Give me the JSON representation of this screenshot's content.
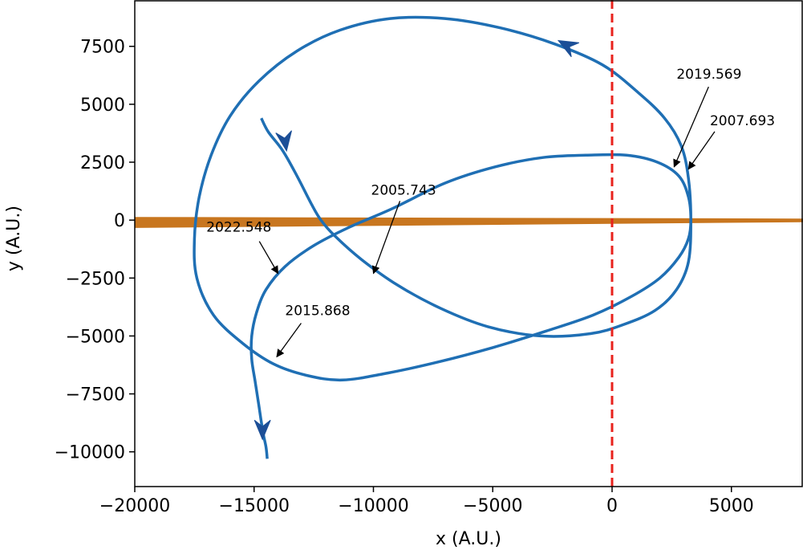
{
  "chart_data": {
    "type": "line",
    "title": "",
    "xlabel": "x (A.U.)",
    "ylabel": "y (A.U.)",
    "xlim": [
      -20000,
      8000
    ],
    "ylim": [
      -11500,
      9500
    ],
    "grid": false,
    "xticks": [
      -20000,
      -15000,
      -10000,
      -5000,
      0,
      5000
    ],
    "xtick_labels": [
      "−20000",
      "−15000",
      "−10000",
      "−5000",
      "0",
      "5000"
    ],
    "yticks": [
      -10000,
      -7500,
      -5000,
      -2500,
      0,
      2500,
      5000,
      7500
    ],
    "ytick_labels": [
      "−10000",
      "−7500",
      "−5000",
      "−2500",
      "0",
      "2500",
      "5000",
      "7500"
    ],
    "reference_line": {
      "x": 0,
      "style": "dashed",
      "color": "#e8221c"
    },
    "band": {
      "x": [
        -20000,
        8000
      ],
      "y_top": [
        120,
        50
      ],
      "y_bottom": [
        -320,
        -70
      ],
      "color": "#c8761f"
    },
    "orbit_color": "#1f6fb4",
    "arrow_color": "#1c4f97",
    "orbit": {
      "x": [
        -14450,
        -14500,
        -14600,
        -14700,
        -14800,
        -14950,
        -15100,
        -15100,
        -14900,
        -14500,
        -13700,
        -12500,
        -11000,
        -9200,
        -7000,
        -4900,
        -2900,
        -1100,
        600,
        1900,
        2800,
        3200,
        3300,
        3200,
        2800,
        2000,
        800,
        -800,
        -2800,
        -5000,
        -7200,
        -9400,
        -11300,
        -12800,
        -14200,
        -15500,
        -16700,
        -17400,
        -17500,
        -17300,
        -16800,
        -16000,
        -14800,
        -13200,
        -11400,
        -9300,
        -7000,
        -4700,
        -2400,
        -400,
        1100,
        2200,
        2900,
        3200,
        3300,
        3200,
        2700,
        1800,
        500,
        -900,
        -3000,
        -5200,
        -7200,
        -9000,
        -10500,
        -11600,
        -12200,
        -12600,
        -13200,
        -13800,
        -14400,
        -14700
      ],
      "y": [
        -10300,
        -9800,
        -9300,
        -8700,
        -8000,
        -7000,
        -6000,
        -5000,
        -4000,
        -3000,
        -2000,
        -1100,
        -300,
        500,
        1600,
        2300,
        2700,
        2800,
        2800,
        2500,
        1900,
        1000,
        0,
        -800,
        -1600,
        -2500,
        -3300,
        -4100,
        -4800,
        -5500,
        -6100,
        -6600,
        -6900,
        -6700,
        -6200,
        -5300,
        -4100,
        -2500,
        -800,
        1000,
        2800,
        4500,
        6000,
        7300,
        8200,
        8700,
        8700,
        8300,
        7600,
        6700,
        5500,
        4400,
        3200,
        1800,
        0,
        -1800,
        -3000,
        -3900,
        -4500,
        -4900,
        -5000,
        -4600,
        -3800,
        -2800,
        -1700,
        -700,
        0,
        700,
        1900,
        3000,
        3800,
        4400
      ]
    },
    "direction_arrows": [
      {
        "x": -14650,
        "y": -9050,
        "dx": 0,
        "dy": -1
      },
      {
        "x": -13700,
        "y": 3400,
        "dx": 0.15,
        "dy": -1
      },
      {
        "x": -1900,
        "y": 7550,
        "dx": -1,
        "dy": 0.55
      }
    ],
    "annotations": [
      {
        "text": "2019.569",
        "x": 2600,
        "y": 2300,
        "tx": 2700,
        "ty": 6100
      },
      {
        "text": "2007.693",
        "x": 3200,
        "y": 2200,
        "tx": 4100,
        "ty": 4100
      },
      {
        "text": "2005.743",
        "x": -10000,
        "y": -2300,
        "tx": -10100,
        "ty": 1100
      },
      {
        "text": "2022.548",
        "x": -14000,
        "y": -2300,
        "tx": -17000,
        "ty": -500
      },
      {
        "text": "2015.868",
        "x": -14050,
        "y": -5900,
        "tx": -13700,
        "ty": -4100
      }
    ]
  }
}
